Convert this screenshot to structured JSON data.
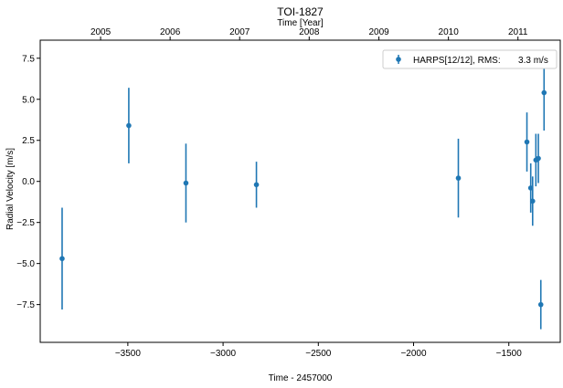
{
  "chart_data": {
    "type": "scatter",
    "title": "TOI-1827",
    "xlabel": "Time - 2457000",
    "ylabel": "Radial Velocity [m/s]",
    "x2label": "Time [Year]",
    "xlim": [
      -3960,
      -1230
    ],
    "ylim": [
      -9.8,
      8.6
    ],
    "xticks": [
      -3500,
      -3000,
      -2500,
      -2000,
      -1500
    ],
    "xtick_labels": [
      "−3500",
      "−3000",
      "−2500",
      "−2000",
      "−1500"
    ],
    "yticks": [
      -7.5,
      -5.0,
      -2.5,
      0.0,
      2.5,
      5.0,
      7.5
    ],
    "ytick_labels": [
      "−7.5",
      "−5.0",
      "−2.5",
      "0.0",
      "2.5",
      "5.0",
      "7.5"
    ],
    "x2ticks": [
      {
        "label": "2005",
        "x": -3643
      },
      {
        "label": "2006",
        "x": -3278
      },
      {
        "label": "2007",
        "x": -2913
      },
      {
        "label": "2008",
        "x": -2548
      },
      {
        "label": "2009",
        "x": -2182
      },
      {
        "label": "2010",
        "x": -1817
      },
      {
        "label": "2011",
        "x": -1452
      }
    ],
    "grid": false,
    "legend_position": "top-right",
    "series": [
      {
        "name": "HARPS[12/12], RMS:       3.3 m/s",
        "color": "#1f77b4",
        "points": [
          {
            "x": -3845,
            "y": -4.7,
            "err": 3.1
          },
          {
            "x": -3495,
            "y": 3.4,
            "err": 2.3
          },
          {
            "x": -3195,
            "y": -0.1,
            "err": 2.4
          },
          {
            "x": -2825,
            "y": -0.2,
            "err": 1.4
          },
          {
            "x": -1765,
            "y": 0.2,
            "err": 2.4
          },
          {
            "x": -1405,
            "y": 2.4,
            "err": 1.8
          },
          {
            "x": -1385,
            "y": -0.4,
            "err": 1.5
          },
          {
            "x": -1375,
            "y": -1.2,
            "err": 1.5
          },
          {
            "x": -1358,
            "y": 1.3,
            "err": 1.6
          },
          {
            "x": -1345,
            "y": 1.4,
            "err": 1.5
          },
          {
            "x": -1332,
            "y": -7.5,
            "err": 1.5
          },
          {
            "x": -1315,
            "y": 5.4,
            "err": 2.3
          }
        ]
      }
    ]
  }
}
